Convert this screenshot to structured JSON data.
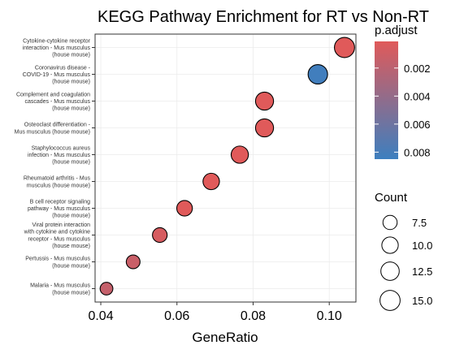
{
  "chart_data": {
    "type": "scatter",
    "title": "KEGG Pathway Enrichment for RT vs Non-RT",
    "xlabel": "GeneRatio",
    "ylabel": "",
    "xlim": [
      0.0385,
      0.107
    ],
    "x_ticks": [
      0.04,
      0.06,
      0.08,
      0.1
    ],
    "x_tick_labels": [
      "0.04",
      "0.06",
      "0.08",
      "0.10"
    ],
    "grid": true,
    "categories": [
      "Cytokine-cytokine receptor interaction - Mus musculus (house mouse)",
      "Coronavirus disease - COVID-19 - Mus musculus (house mouse)",
      "Complement and coagulation cascades - Mus musculus (house mouse)",
      "Osteoclast differentiation - Mus musculus (house mouse)",
      "Staphylococcus aureus infection - Mus musculus (house mouse)",
      "Rheumatoid arthritis - Mus musculus (house mouse)",
      "B cell receptor signaling pathway - Mus musculus (house mouse)",
      "Viral protein interaction with cytokine and cytokine receptor - Mus musculus (house mouse)",
      "Pertussis - Mus musculus (house mouse)",
      "Malaria - Mus musculus (house mouse)"
    ],
    "category_label_lines": [
      [
        "Cytokine-cytokine receptor",
        "interaction - Mus musculus",
        "(house mouse)"
      ],
      [
        "Coronavirus disease -",
        "COVID-19 - Mus musculus",
        "(house mouse)"
      ],
      [
        "Complement and coagulation",
        "cascades - Mus musculus",
        "(house mouse)"
      ],
      [
        "Osteoclast differentiation -",
        "Mus musculus (house mouse)"
      ],
      [
        "Staphylococcus aureus",
        "infection - Mus musculus",
        "(house mouse)"
      ],
      [
        "Rheumatoid arthritis - Mus",
        "musculus (house mouse)"
      ],
      [
        "B cell receptor signaling",
        "pathway - Mus musculus",
        "(house mouse)"
      ],
      [
        "Viral protein interaction",
        "with cytokine and cytokine",
        "receptor - Mus musculus",
        "(house mouse)"
      ],
      [
        "Pertussis - Mus musculus",
        "(house mouse)"
      ],
      [
        "Malaria - Mus musculus",
        "(house mouse)"
      ]
    ],
    "points": [
      {
        "x": 0.104,
        "count": 15,
        "p_adjust": 0.0001
      },
      {
        "x": 0.097,
        "count": 14,
        "p_adjust": 0.0083
      },
      {
        "x": 0.083,
        "count": 12,
        "p_adjust": 0.0001
      },
      {
        "x": 0.083,
        "count": 12,
        "p_adjust": 0.0001
      },
      {
        "x": 0.0765,
        "count": 11,
        "p_adjust": 0.0001
      },
      {
        "x": 0.069,
        "count": 10,
        "p_adjust": 0.0001
      },
      {
        "x": 0.062,
        "count": 9,
        "p_adjust": 0.0001
      },
      {
        "x": 0.0555,
        "count": 8,
        "p_adjust": 0.0006
      },
      {
        "x": 0.0485,
        "count": 7,
        "p_adjust": 0.0013
      },
      {
        "x": 0.0415,
        "count": 6,
        "p_adjust": 0.0015
      }
    ],
    "color_legend": {
      "title": "p.adjust",
      "min": 0.0001,
      "max": 0.0085,
      "low_color": "#e05a5a",
      "high_color": "#3d7fbf",
      "ticks": [
        0.002,
        0.004,
        0.006,
        0.008
      ],
      "tick_labels": [
        "0.002",
        "0.004",
        "0.006",
        "0.008"
      ]
    },
    "size_legend": {
      "title": "Count",
      "values": [
        7.5,
        10,
        12.5,
        15
      ],
      "labels": [
        "7.5",
        "10.0",
        "12.5",
        "15.0"
      ]
    },
    "legend_position": "right"
  }
}
